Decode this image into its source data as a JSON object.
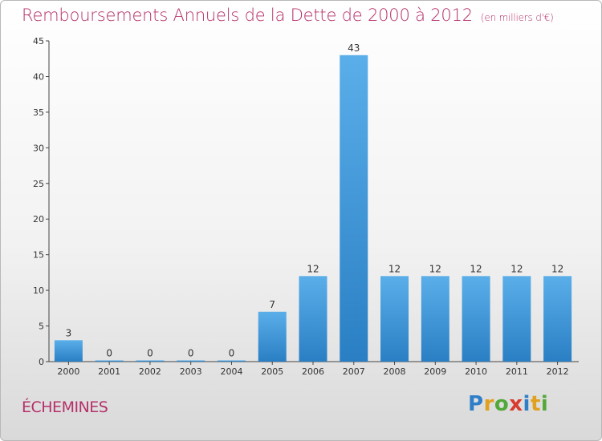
{
  "chart_data": {
    "type": "bar",
    "title": "Remboursements Annuels de la Dette de 2000 à 2012",
    "subtitle": "(en milliers d'€)",
    "categories": [
      "2000",
      "2001",
      "2002",
      "2003",
      "2004",
      "2005",
      "2006",
      "2007",
      "2008",
      "2009",
      "2010",
      "2011",
      "2012"
    ],
    "values": [
      3,
      0,
      0,
      0,
      0,
      7,
      12,
      43,
      12,
      12,
      12,
      12,
      12
    ],
    "ylim": [
      0,
      45
    ],
    "yticks": [
      0,
      5,
      10,
      15,
      20,
      25,
      30,
      35,
      40,
      45
    ],
    "grid": false,
    "bar_color": "#3d95dc"
  },
  "footer": {
    "town": "ÉCHEMINES",
    "logo": {
      "p": "P",
      "r": "r",
      "o": "o",
      "x": "x",
      "i1": "i",
      "t": "t",
      "i2": "i"
    }
  }
}
